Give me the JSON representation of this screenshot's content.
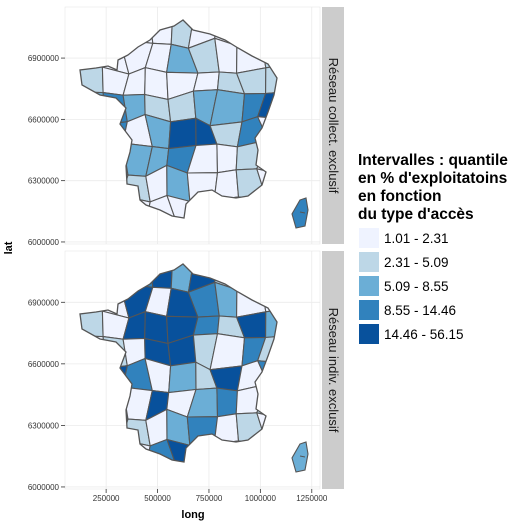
{
  "chart_data": {
    "type": "choropleth",
    "xlabel": "long",
    "ylabel": "lat",
    "x_ticks": [
      250000,
      500000,
      750000,
      1000000,
      1250000
    ],
    "y_ticks": [
      6000000,
      6300000,
      6600000,
      6900000
    ],
    "xlim": [
      50000,
      1290000
    ],
    "ylim": [
      5990000,
      7150000
    ],
    "panels": [
      {
        "name": "Réseau collect. exclusif"
      },
      {
        "name": "Réseau indiv. exclusif"
      }
    ],
    "legend": {
      "title_lines": [
        "Intervalles :  quantile",
        "en % d'exploitatoins",
        "en fonction",
        "du type d'accès"
      ],
      "position": "right",
      "classes": [
        {
          "label": "1.01 - 2.31",
          "color": "#eff3ff"
        },
        {
          "label": "2.31 - 5.09",
          "color": "#bdd7e7"
        },
        {
          "label": "5.09 - 8.55",
          "color": "#6baed6"
        },
        {
          "label": "8.55 - 14.46",
          "color": "#3182bd"
        },
        {
          "label": "14.46 - 56.15",
          "color": "#08519c"
        }
      ]
    },
    "grid": true,
    "panel_background": "#ffffff",
    "grid_color": "#ebebeb",
    "strip_color": "#cccccc",
    "border_color": "#555555"
  }
}
